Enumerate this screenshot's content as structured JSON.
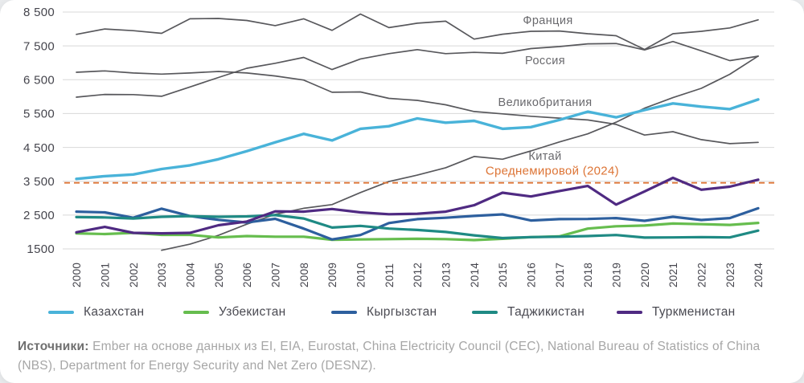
{
  "chart_data": {
    "type": "line",
    "title": "",
    "xlabel": "",
    "ylabel": "",
    "ylim": [
      1500,
      8500
    ],
    "grid": "horizontal",
    "legend_position": "bottom",
    "x": [
      2000,
      2001,
      2002,
      2003,
      2004,
      2005,
      2006,
      2007,
      2008,
      2009,
      2010,
      2011,
      2012,
      2013,
      2014,
      2015,
      2016,
      2017,
      2018,
      2019,
      2020,
      2021,
      2022,
      2023,
      2024
    ],
    "yticks": [
      {
        "value": 8500,
        "label": "8 500"
      },
      {
        "value": 7500,
        "label": "7 500"
      },
      {
        "value": 6500,
        "label": "6 500"
      },
      {
        "value": 5500,
        "label": "5 500"
      },
      {
        "value": 4500,
        "label": "4 500"
      },
      {
        "value": 3500,
        "label": "3 500"
      },
      {
        "value": 2500,
        "label": "2 500"
      },
      {
        "value": 1500,
        "label": "1500"
      }
    ],
    "series": [
      {
        "id": "france",
        "name": "Франция",
        "color": "#58585c",
        "width": 1.7,
        "values": [
          7840,
          8000,
          7950,
          7870,
          8300,
          8310,
          8250,
          8100,
          8300,
          7960,
          8440,
          8040,
          8170,
          8230,
          7700,
          7845,
          7930,
          7940,
          7860,
          7800,
          7395,
          7860,
          7930,
          8030,
          8270
        ],
        "label": {
          "year": 2016.6,
          "value": 8140,
          "anchor": "middle"
        }
      },
      {
        "id": "russia",
        "name": "Россия",
        "color": "#58585c",
        "width": 1.7,
        "values": [
          5985,
          6065,
          6060,
          6010,
          6285,
          6565,
          6840,
          6985,
          7160,
          6800,
          7115,
          7270,
          7390,
          7270,
          7310,
          7280,
          7420,
          7480,
          7560,
          7570,
          7380,
          7630,
          7355,
          7065,
          7195
        ],
        "label": {
          "year": 2016.5,
          "value": 6960,
          "anchor": "middle"
        }
      },
      {
        "id": "uk",
        "name": "Великобритания",
        "color": "#58585c",
        "width": 1.7,
        "values": [
          6720,
          6760,
          6700,
          6665,
          6700,
          6745,
          6700,
          6610,
          6490,
          6130,
          6140,
          5950,
          5890,
          5760,
          5560,
          5490,
          5420,
          5365,
          5310,
          5180,
          4865,
          4965,
          4730,
          4610,
          4650
        ],
        "label": {
          "year": 2016.5,
          "value": 5725,
          "anchor": "middle"
        }
      },
      {
        "id": "china",
        "name": "Китай",
        "color": "#58585c",
        "width": 1.7,
        "values": [
          null,
          null,
          null,
          1460,
          1640,
          1900,
          2230,
          2520,
          2700,
          2810,
          3165,
          3490,
          3680,
          3900,
          4230,
          4150,
          4395,
          4660,
          4900,
          5245,
          5660,
          5970,
          6245,
          6660,
          7200
        ],
        "label": {
          "year": 2016.5,
          "value": 4135,
          "anchor": "middle"
        }
      },
      {
        "id": "kazakhstan",
        "name": "Казахстан",
        "color": "#49b3d9",
        "width": 3.4,
        "values": [
          3570,
          3650,
          3700,
          3860,
          3970,
          4150,
          4390,
          4650,
          4900,
          4705,
          5050,
          5125,
          5355,
          5230,
          5285,
          5050,
          5100,
          5310,
          5555,
          5390,
          5605,
          5800,
          5705,
          5630,
          5915
        ]
      },
      {
        "id": "uzbekistan",
        "name": "Узбекистан",
        "color": "#66bd4e",
        "width": 3.2,
        "values": [
          1960,
          1940,
          1975,
          1915,
          1915,
          1840,
          1880,
          1860,
          1860,
          1770,
          1780,
          1790,
          1800,
          1790,
          1760,
          1800,
          1850,
          1870,
          2100,
          2170,
          2190,
          2250,
          2230,
          2210,
          2270
        ]
      },
      {
        "id": "kyrgyzstan",
        "name": "Кыргызстан",
        "color": "#2d5f9e",
        "width": 3.2,
        "values": [
          2600,
          2580,
          2420,
          2690,
          2470,
          2360,
          2280,
          2390,
          2100,
          1780,
          1910,
          2265,
          2380,
          2420,
          2475,
          2520,
          2340,
          2380,
          2385,
          2410,
          2330,
          2450,
          2355,
          2410,
          2700
        ]
      },
      {
        "id": "tajikistan",
        "name": "Таджикистан",
        "color": "#1f8a84",
        "width": 3.2,
        "values": [
          2440,
          2430,
          2400,
          2450,
          2470,
          2450,
          2460,
          2500,
          2400,
          2130,
          2180,
          2100,
          2060,
          2000,
          1900,
          1820,
          1850,
          1860,
          1880,
          1910,
          1835,
          1840,
          1850,
          1840,
          2040
        ]
      },
      {
        "id": "turkmenistan",
        "name": "Туркменистан",
        "color": "#4f2a82",
        "width": 3.2,
        "values": [
          1990,
          2150,
          1975,
          1960,
          1975,
          2200,
          2310,
          2610,
          2600,
          2680,
          2580,
          2525,
          2540,
          2600,
          2790,
          3160,
          3050,
          3210,
          3360,
          2810,
          3200,
          3600,
          3250,
          3340,
          3545
        ]
      }
    ],
    "world_average": {
      "name": "Среднемировой (2024)",
      "value": 3500,
      "color": "#dd7435",
      "label": {
        "year": 2019.1,
        "value": 3690,
        "anchor": "end"
      }
    }
  },
  "legend": {
    "items": [
      {
        "id": "kazakhstan",
        "name": "Казахстан",
        "color": "#49b3d9",
        "x": 60
      },
      {
        "id": "uzbekistan",
        "name": "Узбекистан",
        "color": "#66bd4e",
        "x": 228
      },
      {
        "id": "kyrgyzstan",
        "name": "Кыргызстан",
        "color": "#2d5f9e",
        "x": 412
      },
      {
        "id": "tajikistan",
        "name": "Таджикистан",
        "color": "#1f8a84",
        "x": 587
      },
      {
        "id": "turkmenistan",
        "name": "Туркменистан",
        "color": "#4f2a82",
        "x": 767
      }
    ]
  },
  "source": {
    "label": "Источники:",
    "text": " Ember на основе данных из EI, EIA, Eurostat, China Electricity Council (CEC), National Bureau of Statistics of China (NBS), Department for Energy Security and Net Zero (DESNZ)."
  }
}
